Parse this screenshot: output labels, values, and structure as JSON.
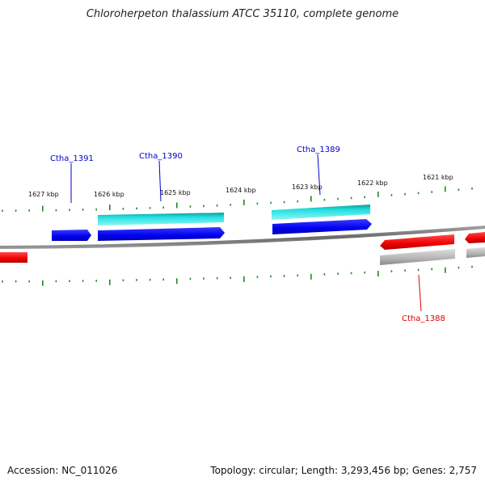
{
  "title": "Chloroherpeton thalassium ATCC 35110, complete genome",
  "footer": {
    "accession": "Accession: NC_011026",
    "summary": "Topology: circular; Length: 3,293,456 bp; Genes: 2,757"
  },
  "colors": {
    "backbone": "#808080",
    "tick": "#1e8a1e",
    "forward_gene": "#0000ff",
    "forward_cds": "#00e5ee",
    "reverse_gene": "#ff0000",
    "reverse_cds": "#b5b5b5",
    "label_forward": "#0000cc",
    "label_reverse": "#dd0000"
  },
  "axis": {
    "unit": "kbp",
    "ticks": [
      {
        "kbp": 1627,
        "label": "1627 kbp"
      },
      {
        "kbp": 1626,
        "label": "1626 kbp"
      },
      {
        "kbp": 1625,
        "label": "1625 kbp"
      },
      {
        "kbp": 1624,
        "label": "1624 kbp"
      },
      {
        "kbp": 1623,
        "label": "1623 kbp"
      },
      {
        "kbp": 1622,
        "label": "1622 kbp"
      },
      {
        "kbp": 1621,
        "label": "1621 kbp"
      }
    ]
  },
  "genes": [
    {
      "label": "Ctha_1391",
      "strand": "forward"
    },
    {
      "label": "Ctha_1390",
      "strand": "forward"
    },
    {
      "label": "Ctha_1389",
      "strand": "forward"
    },
    {
      "label": "Ctha_1388",
      "strand": "reverse"
    }
  ]
}
